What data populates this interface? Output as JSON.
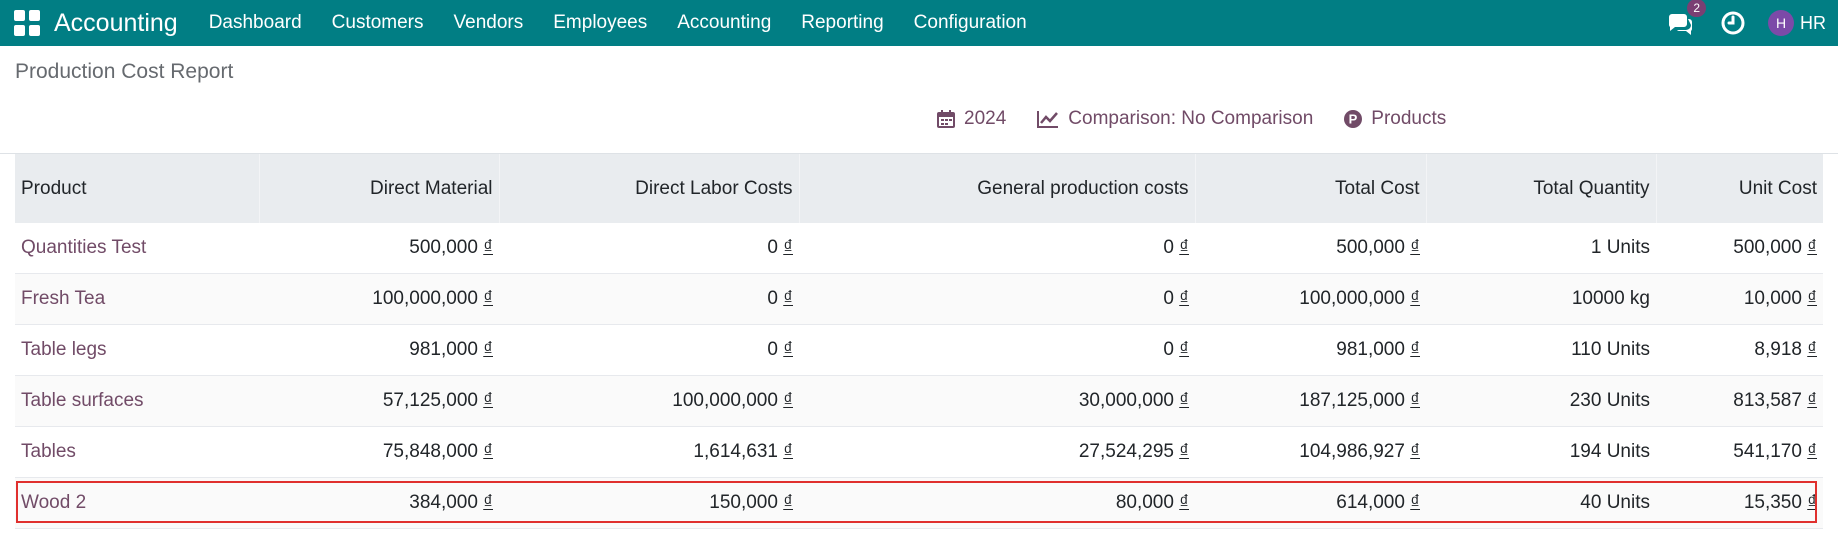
{
  "navbar": {
    "app_name": "Accounting",
    "menu": [
      "Dashboard",
      "Customers",
      "Vendors",
      "Employees",
      "Accounting",
      "Reporting",
      "Configuration"
    ],
    "message_count": "2",
    "avatar_letter": "H",
    "user_label": "HR"
  },
  "page": {
    "title": "Production Cost Report"
  },
  "filters": {
    "date": "2024",
    "comparison": "Comparison: No Comparison",
    "products": "Products"
  },
  "table": {
    "columns": [
      "Product",
      "Direct Material",
      "Direct Labor Costs",
      "General production costs",
      "Total Cost",
      "Total Quantity",
      "Unit Cost"
    ],
    "currency_symbol": "₫",
    "rows": [
      {
        "product": "Quantities Test",
        "direct_material": "500,000",
        "direct_labor": "0",
        "general_costs": "0",
        "total_cost": "500,000",
        "total_quantity": "1 Units",
        "unit_cost": "500,000"
      },
      {
        "product": "Fresh Tea",
        "direct_material": "100,000,000",
        "direct_labor": "0",
        "general_costs": "0",
        "total_cost": "100,000,000",
        "total_quantity": "10000 kg",
        "unit_cost": "10,000"
      },
      {
        "product": "Table legs",
        "direct_material": "981,000",
        "direct_labor": "0",
        "general_costs": "0",
        "total_cost": "981,000",
        "total_quantity": "110 Units",
        "unit_cost": "8,918"
      },
      {
        "product": "Table surfaces",
        "direct_material": "57,125,000",
        "direct_labor": "100,000,000",
        "general_costs": "30,000,000",
        "total_cost": "187,125,000",
        "total_quantity": "230 Units",
        "unit_cost": "813,587"
      },
      {
        "product": "Tables",
        "direct_material": "75,848,000",
        "direct_labor": "1,614,631",
        "general_costs": "27,524,295",
        "total_cost": "104,986,927",
        "total_quantity": "194 Units",
        "unit_cost": "541,170"
      },
      {
        "product": "Wood 2",
        "direct_material": "384,000",
        "direct_labor": "150,000",
        "general_costs": "80,000",
        "total_cost": "614,000",
        "total_quantity": "40 Units",
        "unit_cost": "15,350"
      }
    ]
  },
  "colors": {
    "navbar": "#017e84",
    "accent": "#714b67",
    "highlight": "#e0302e"
  }
}
